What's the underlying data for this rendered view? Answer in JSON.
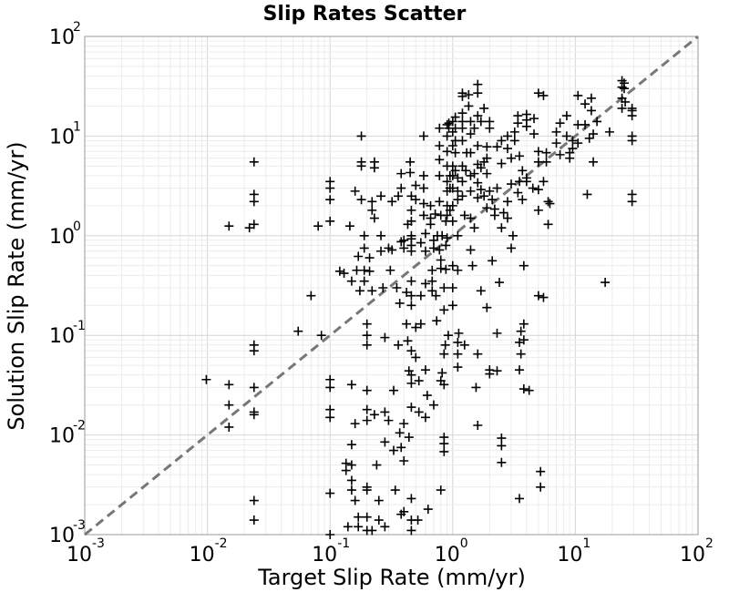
{
  "chart_data": {
    "type": "scatter",
    "title": "Slip Rates Scatter",
    "xlabel": "Target Slip Rate (mm/yr)",
    "ylabel": "Solution Slip Rate (mm/yr)",
    "xscale": "log",
    "yscale": "log",
    "xlim": [
      0.001,
      100
    ],
    "ylim": [
      0.001,
      100
    ],
    "grid": true,
    "marker": "+",
    "marker_color": "#000000",
    "reference_line": {
      "style": "dashed",
      "color": "#777777",
      "x": [
        0.001,
        100
      ],
      "y": [
        0.001,
        100
      ]
    },
    "xticks": [
      {
        "base": "10",
        "exp": "-3"
      },
      {
        "base": "10",
        "exp": "-2"
      },
      {
        "base": "10",
        "exp": "-1"
      },
      {
        "base": "10",
        "exp": "0"
      },
      {
        "base": "10",
        "exp": "1"
      },
      {
        "base": "10",
        "exp": "2"
      }
    ],
    "yticks": [
      {
        "base": "10",
        "exp": "-3"
      },
      {
        "base": "10",
        "exp": "-2"
      },
      {
        "base": "10",
        "exp": "-1"
      },
      {
        "base": "10",
        "exp": "0"
      },
      {
        "base": "10",
        "exp": "1"
      },
      {
        "base": "10",
        "exp": "2"
      }
    ],
    "points": [
      [
        0.0098,
        0.036
      ],
      [
        0.015,
        1.25
      ],
      [
        0.015,
        0.032
      ],
      [
        0.015,
        0.02
      ],
      [
        0.015,
        0.012
      ],
      [
        0.022,
        1.2
      ],
      [
        0.024,
        5.5
      ],
      [
        0.024,
        2.6
      ],
      [
        0.024,
        2.2
      ],
      [
        0.024,
        1.3
      ],
      [
        0.024,
        0.08
      ],
      [
        0.024,
        0.07
      ],
      [
        0.024,
        0.03
      ],
      [
        0.024,
        0.017
      ],
      [
        0.024,
        0.016
      ],
      [
        0.024,
        0.0022
      ],
      [
        0.024,
        0.0014
      ],
      [
        0.055,
        0.11
      ],
      [
        0.07,
        0.25
      ],
      [
        0.08,
        1.25
      ],
      [
        0.085,
        0.1
      ],
      [
        0.1,
        3.5
      ],
      [
        0.1,
        3.0
      ],
      [
        0.1,
        2.3
      ],
      [
        0.1,
        1.4
      ],
      [
        0.1,
        0.036
      ],
      [
        0.1,
        0.03
      ],
      [
        0.1,
        0.018
      ],
      [
        0.1,
        0.015
      ],
      [
        0.1,
        0.0026
      ],
      [
        0.1,
        0.001
      ],
      [
        0.12,
        0.44
      ],
      [
        0.13,
        0.42
      ],
      [
        0.135,
        0.0052
      ],
      [
        0.135,
        0.0044
      ],
      [
        0.14,
        0.0012
      ],
      [
        0.145,
        1.25
      ],
      [
        0.15,
        0.35
      ],
      [
        0.15,
        0.032
      ],
      [
        0.15,
        0.008
      ],
      [
        0.15,
        0.005
      ],
      [
        0.15,
        0.0035
      ],
      [
        0.15,
        0.0028
      ],
      [
        0.16,
        2.8
      ],
      [
        0.16,
        0.013
      ],
      [
        0.16,
        0.0022
      ],
      [
        0.165,
        0.45
      ],
      [
        0.17,
        0.62
      ],
      [
        0.17,
        0.0015
      ],
      [
        0.17,
        0.0012
      ],
      [
        0.175,
        0.28
      ],
      [
        0.18,
        10.0
      ],
      [
        0.18,
        5.5
      ],
      [
        0.18,
        5.0
      ],
      [
        0.18,
        2.3
      ],
      [
        0.19,
        1.0
      ],
      [
        0.19,
        0.75
      ],
      [
        0.19,
        0.45
      ],
      [
        0.19,
        0.35
      ],
      [
        0.2,
        0.13
      ],
      [
        0.2,
        0.1
      ],
      [
        0.2,
        0.08
      ],
      [
        0.2,
        0.028
      ],
      [
        0.2,
        0.018
      ],
      [
        0.2,
        0.014
      ],
      [
        0.2,
        0.003
      ],
      [
        0.2,
        0.0028
      ],
      [
        0.2,
        0.0015
      ],
      [
        0.2,
        0.0011
      ],
      [
        0.21,
        0.6
      ],
      [
        0.21,
        0.44
      ],
      [
        0.22,
        2.2
      ],
      [
        0.22,
        1.8
      ],
      [
        0.22,
        0.28
      ],
      [
        0.22,
        0.0011
      ],
      [
        0.23,
        5.5
      ],
      [
        0.23,
        4.8
      ],
      [
        0.23,
        1.5
      ],
      [
        0.23,
        0.016
      ],
      [
        0.24,
        0.005
      ],
      [
        0.25,
        0.0022
      ],
      [
        0.25,
        0.0014
      ],
      [
        0.26,
        2.5
      ],
      [
        0.26,
        1.0
      ],
      [
        0.26,
        0.7
      ],
      [
        0.27,
        0.3
      ],
      [
        0.28,
        0.095
      ],
      [
        0.28,
        0.017
      ],
      [
        0.28,
        0.0085
      ],
      [
        0.28,
        0.0012
      ],
      [
        0.3,
        0.75
      ],
      [
        0.3,
        0.014
      ],
      [
        0.31,
        0.45
      ],
      [
        0.32,
        2.2
      ],
      [
        0.32,
        0.72
      ],
      [
        0.33,
        0.028
      ],
      [
        0.33,
        0.007
      ],
      [
        0.34,
        0.0028
      ],
      [
        0.35,
        0.3
      ],
      [
        0.36,
        2.5
      ],
      [
        0.36,
        0.08
      ],
      [
        0.37,
        0.21
      ],
      [
        0.37,
        0.0105
      ],
      [
        0.38,
        4.2
      ],
      [
        0.38,
        3.0
      ],
      [
        0.38,
        0.87
      ],
      [
        0.38,
        0.0075
      ],
      [
        0.38,
        0.0016
      ],
      [
        0.4,
        0.9
      ],
      [
        0.4,
        0.75
      ],
      [
        0.4,
        0.013
      ],
      [
        0.4,
        0.0055
      ],
      [
        0.4,
        0.0017
      ],
      [
        0.42,
        0.27
      ],
      [
        0.42,
        0.13
      ],
      [
        0.43,
        1.3
      ],
      [
        0.43,
        0.088
      ],
      [
        0.44,
        0.044
      ],
      [
        0.44,
        0.0095
      ],
      [
        0.45,
        5.5
      ],
      [
        0.45,
        4.3
      ],
      [
        0.46,
        2.5
      ],
      [
        0.46,
        1.8
      ],
      [
        0.46,
        1.4
      ],
      [
        0.46,
        1.0
      ],
      [
        0.46,
        0.93
      ],
      [
        0.46,
        0.8
      ],
      [
        0.46,
        0.7
      ],
      [
        0.46,
        0.35
      ],
      [
        0.46,
        0.25
      ],
      [
        0.46,
        0.2
      ],
      [
        0.46,
        0.07
      ],
      [
        0.46,
        0.04
      ],
      [
        0.46,
        0.033
      ],
      [
        0.46,
        0.019
      ],
      [
        0.46,
        0.0023
      ],
      [
        0.46,
        0.0014
      ],
      [
        0.46,
        0.0011
      ],
      [
        0.5,
        3.2
      ],
      [
        0.5,
        2.3
      ],
      [
        0.5,
        0.12
      ],
      [
        0.5,
        0.06
      ],
      [
        0.52,
        0.0014
      ],
      [
        0.53,
        0.035
      ],
      [
        0.53,
        0.017
      ],
      [
        0.55,
        0.85
      ],
      [
        0.55,
        0.25
      ],
      [
        0.55,
        0.13
      ],
      [
        0.58,
        10.0
      ],
      [
        0.58,
        4.0
      ],
      [
        0.58,
        3.0
      ],
      [
        0.58,
        2.1
      ],
      [
        0.58,
        1.6
      ],
      [
        0.6,
        1.05
      ],
      [
        0.6,
        0.7
      ],
      [
        0.6,
        0.33
      ],
      [
        0.6,
        0.045
      ],
      [
        0.6,
        0.015
      ],
      [
        0.62,
        0.025
      ],
      [
        0.63,
        0.0018
      ],
      [
        0.66,
        2.0
      ],
      [
        0.66,
        1.5
      ],
      [
        0.66,
        1.3
      ],
      [
        0.68,
        0.45
      ],
      [
        0.68,
        0.35
      ],
      [
        0.68,
        0.28
      ],
      [
        0.7,
        0.9
      ],
      [
        0.7,
        0.75
      ],
      [
        0.7,
        0.02
      ],
      [
        0.72,
        1.65
      ],
      [
        0.73,
        0.25
      ],
      [
        0.74,
        0.14
      ],
      [
        0.75,
        1.0
      ],
      [
        0.78,
        12.0
      ],
      [
        0.78,
        8.0
      ],
      [
        0.78,
        5.8
      ],
      [
        0.78,
        4.0
      ],
      [
        0.78,
        2.2
      ],
      [
        0.78,
        0.72
      ],
      [
        0.8,
        1.6
      ],
      [
        0.8,
        0.57
      ],
      [
        0.8,
        0.47
      ],
      [
        0.8,
        0.035
      ],
      [
        0.8,
        0.0028
      ],
      [
        0.82,
        1.0
      ],
      [
        0.82,
        0.042
      ],
      [
        0.85,
        0.3
      ],
      [
        0.85,
        0.18
      ],
      [
        0.85,
        0.065
      ],
      [
        0.85,
        0.032
      ],
      [
        0.85,
        0.0095
      ],
      [
        0.85,
        0.0082
      ],
      [
        0.85,
        0.0068
      ],
      [
        0.87,
        0.08
      ],
      [
        0.88,
        1.4
      ],
      [
        0.88,
        0.8
      ],
      [
        0.88,
        0.46
      ],
      [
        0.9,
        13.0
      ],
      [
        0.9,
        10.0
      ],
      [
        0.9,
        7.0
      ],
      [
        0.9,
        5.0
      ],
      [
        0.9,
        3.5
      ],
      [
        0.9,
        2.8
      ],
      [
        0.9,
        2.0
      ],
      [
        0.9,
        1.6
      ],
      [
        0.9,
        0.95
      ],
      [
        0.92,
        0.1
      ],
      [
        0.93,
        13.5
      ],
      [
        0.93,
        12.0
      ],
      [
        0.95,
        4.0
      ],
      [
        0.95,
        3.0
      ],
      [
        0.95,
        1.8
      ],
      [
        1.0,
        14.0
      ],
      [
        1.0,
        11.0
      ],
      [
        1.0,
        8.0
      ],
      [
        1.0,
        5.0
      ],
      [
        1.0,
        4.0
      ],
      [
        1.0,
        3.0
      ],
      [
        1.0,
        2.0
      ],
      [
        1.0,
        1.4
      ],
      [
        1.0,
        0.5
      ],
      [
        1.0,
        0.3
      ],
      [
        1.0,
        0.2
      ],
      [
        1.05,
        15.5
      ],
      [
        1.05,
        12.0
      ],
      [
        1.05,
        9.0
      ],
      [
        1.05,
        6.8
      ],
      [
        1.05,
        4.5
      ],
      [
        1.1,
        3.8
      ],
      [
        1.1,
        2.8
      ],
      [
        1.1,
        2.3
      ],
      [
        1.1,
        1.0
      ],
      [
        1.1,
        0.45
      ],
      [
        1.1,
        0.085
      ],
      [
        1.1,
        0.065
      ],
      [
        1.1,
        0.048
      ],
      [
        1.12,
        0.105
      ],
      [
        1.2,
        27.0
      ],
      [
        1.2,
        25.0
      ],
      [
        1.2,
        17.0
      ],
      [
        1.2,
        14.0
      ],
      [
        1.2,
        12.0
      ],
      [
        1.2,
        9.0
      ],
      [
        1.2,
        5.0
      ],
      [
        1.2,
        3.5
      ],
      [
        1.2,
        2.5
      ],
      [
        1.25,
        1.6
      ],
      [
        1.25,
        0.08
      ],
      [
        1.28,
        4.5
      ],
      [
        1.3,
        6.8
      ],
      [
        1.35,
        26.0
      ],
      [
        1.35,
        20.0
      ],
      [
        1.4,
        14.0
      ],
      [
        1.4,
        10.5
      ],
      [
        1.4,
        6.8
      ],
      [
        1.4,
        4.0
      ],
      [
        1.4,
        2.8
      ],
      [
        1.4,
        1.5
      ],
      [
        1.4,
        0.72
      ],
      [
        1.45,
        0.5
      ],
      [
        1.5,
        12.0
      ],
      [
        1.5,
        4.2
      ],
      [
        1.5,
        1.2
      ],
      [
        1.55,
        0.03
      ],
      [
        1.6,
        33.0
      ],
      [
        1.6,
        27.0
      ],
      [
        1.6,
        16.0
      ],
      [
        1.6,
        8.0
      ],
      [
        1.6,
        5.2
      ],
      [
        1.6,
        3.4
      ],
      [
        1.6,
        2.4
      ],
      [
        1.6,
        0.065
      ],
      [
        1.6,
        0.0125
      ],
      [
        1.7,
        14.0
      ],
      [
        1.7,
        4.8
      ],
      [
        1.7,
        2.9
      ],
      [
        1.7,
        0.28
      ],
      [
        1.8,
        19.0
      ],
      [
        1.8,
        5.5
      ],
      [
        1.8,
        2.5
      ],
      [
        1.9,
        7.8
      ],
      [
        1.9,
        6.0
      ],
      [
        1.9,
        4.2
      ],
      [
        1.9,
        1.9
      ],
      [
        1.9,
        0.19
      ],
      [
        2.0,
        14.0
      ],
      [
        2.0,
        12.0
      ],
      [
        2.0,
        2.8
      ],
      [
        2.0,
        0.045
      ],
      [
        2.0,
        0.041
      ],
      [
        2.1,
        2.3
      ],
      [
        2.1,
        0.56
      ],
      [
        2.2,
        1.85
      ],
      [
        2.2,
        1.6
      ],
      [
        2.3,
        7.8
      ],
      [
        2.3,
        3.0
      ],
      [
        2.3,
        0.105
      ],
      [
        2.3,
        0.044
      ],
      [
        2.4,
        0.34
      ],
      [
        2.5,
        9.0
      ],
      [
        2.5,
        5.3
      ],
      [
        2.5,
        1.2
      ],
      [
        2.5,
        0.0093
      ],
      [
        2.5,
        0.0078
      ],
      [
        2.5,
        0.0053
      ],
      [
        2.6,
        1.7
      ],
      [
        2.8,
        10.0
      ],
      [
        2.8,
        7.5
      ],
      [
        2.8,
        2.2
      ],
      [
        2.8,
        1.5
      ],
      [
        3.0,
        6.0
      ],
      [
        3.0,
        3.3
      ],
      [
        3.0,
        0.75
      ],
      [
        3.1,
        1.0
      ],
      [
        3.2,
        11.0
      ],
      [
        3.2,
        9.0
      ],
      [
        3.4,
        16.0
      ],
      [
        3.4,
        13.5
      ],
      [
        3.4,
        2.7
      ],
      [
        3.5,
        6.3
      ],
      [
        3.5,
        3.5
      ],
      [
        3.5,
        0.085
      ],
      [
        3.5,
        0.045
      ],
      [
        3.5,
        0.0023
      ],
      [
        3.6,
        0.11
      ],
      [
        3.6,
        0.065
      ],
      [
        3.7,
        4.5
      ],
      [
        3.7,
        2.3
      ],
      [
        3.8,
        0.5
      ],
      [
        3.8,
        0.13
      ],
      [
        3.8,
        0.09
      ],
      [
        3.8,
        0.029
      ],
      [
        4.0,
        16.5
      ],
      [
        4.0,
        14.5
      ],
      [
        4.0,
        12.5
      ],
      [
        4.0,
        3.8
      ],
      [
        4.0,
        3.5
      ],
      [
        4.2,
        0.028
      ],
      [
        4.5,
        3.0
      ],
      [
        4.6,
        15.0
      ],
      [
        4.6,
        10.5
      ],
      [
        5.0,
        27.0
      ],
      [
        5.0,
        7.0
      ],
      [
        5.0,
        5.5
      ],
      [
        5.0,
        2.9
      ],
      [
        5.0,
        1.8
      ],
      [
        5.0,
        0.25
      ],
      [
        5.2,
        0.0043
      ],
      [
        5.2,
        0.003
      ],
      [
        5.5,
        25.5
      ],
      [
        5.5,
        3.5
      ],
      [
        5.5,
        0.24
      ],
      [
        5.8,
        6.8
      ],
      [
        5.8,
        5.5
      ],
      [
        6.0,
        2.2
      ],
      [
        6.0,
        1.3
      ],
      [
        6.2,
        2.1
      ],
      [
        7.0,
        11.0
      ],
      [
        7.0,
        8.5
      ],
      [
        7.5,
        13.5
      ],
      [
        7.5,
        6.5
      ],
      [
        8.5,
        16.0
      ],
      [
        8.5,
        10.0
      ],
      [
        9.0,
        6.8
      ],
      [
        9.0,
        6.0
      ],
      [
        9.5,
        9.0
      ],
      [
        9.5,
        7.5
      ],
      [
        10.5,
        25.5
      ],
      [
        10.5,
        13.0
      ],
      [
        10.5,
        8.5
      ],
      [
        12.0,
        21.0
      ],
      [
        12.0,
        13.0
      ],
      [
        12.5,
        2.6
      ],
      [
        13.0,
        9.5
      ],
      [
        13.5,
        24.0
      ],
      [
        13.5,
        18.0
      ],
      [
        14.0,
        10.5
      ],
      [
        14.0,
        5.5
      ],
      [
        15.0,
        14.0
      ],
      [
        17.5,
        0.34
      ],
      [
        19.0,
        11.0
      ],
      [
        24.0,
        36.0
      ],
      [
        24.0,
        31.0
      ],
      [
        24.0,
        24.0
      ],
      [
        24.0,
        19.0
      ],
      [
        25.0,
        34.0
      ],
      [
        25.0,
        30.0
      ],
      [
        25.5,
        22.0
      ],
      [
        29.0,
        19.0
      ],
      [
        29.0,
        18.0
      ],
      [
        29.0,
        16.0
      ],
      [
        29.0,
        10.0
      ],
      [
        29.0,
        9.0
      ],
      [
        29.0,
        2.6
      ],
      [
        29.0,
        2.2
      ]
    ]
  }
}
